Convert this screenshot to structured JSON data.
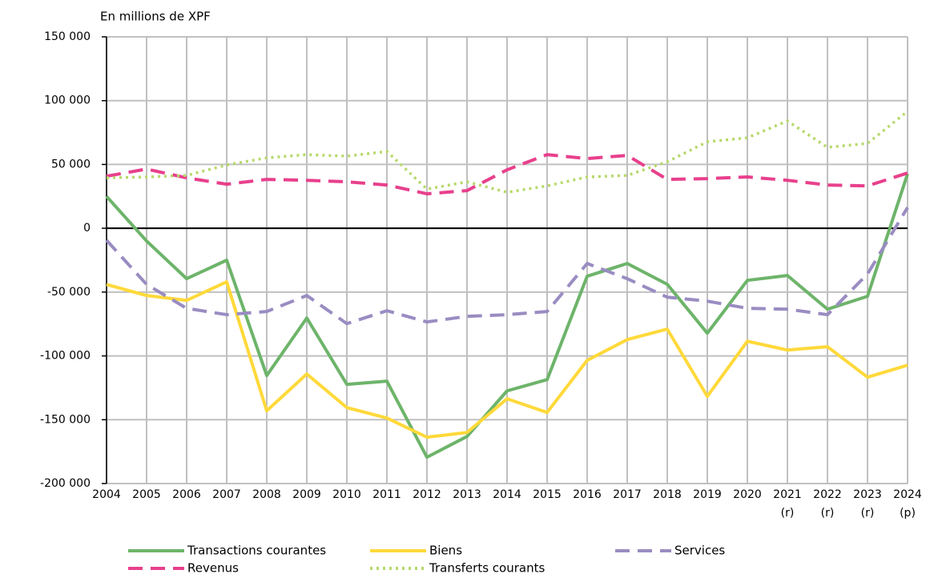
{
  "chart_data": {
    "type": "line",
    "y_axis_label": "En millions de XPF",
    "categories": [
      "2004",
      "2005",
      "2006",
      "2007",
      "2008",
      "2009",
      "2010",
      "2011",
      "2012",
      "2013",
      "2014",
      "2015",
      "2016",
      "2017",
      "2018",
      "2019",
      "2020",
      "2021 (r)",
      "2022 (r)",
      "2023 (r)",
      "2024 (p)"
    ],
    "ylim": [
      -200000,
      150000
    ],
    "yticks": [
      {
        "value": -200000,
        "label": "-200 000"
      },
      {
        "value": -150000,
        "label": "-150 000"
      },
      {
        "value": -100000,
        "label": "-100 000"
      },
      {
        "value": -50000,
        "label": "-50 000"
      },
      0,
      {
        "value": 50000,
        "label": "50 000"
      },
      {
        "value": 100000,
        "label": "100 000"
      },
      {
        "value": 150000,
        "label": "150 000"
      }
    ],
    "grid": true,
    "legend_position": "bottom",
    "series": [
      {
        "name": "Transactions courantes",
        "color": "#6db46a",
        "style": "solid",
        "values": [
          25000,
          -10000,
          -39500,
          -25000,
          -115400,
          -70300,
          -122300,
          -119800,
          -179400,
          -163100,
          -127400,
          -118600,
          -37600,
          -27600,
          -43900,
          -82200,
          -40800,
          -37000,
          -63400,
          -53300,
          42700
        ]
      },
      {
        "name": "Biens",
        "color": "#ffd93a",
        "style": "solid",
        "values": [
          -44000,
          -52700,
          -56500,
          -42000,
          -143000,
          -114200,
          -140500,
          -148700,
          -163700,
          -160000,
          -133600,
          -144300,
          -103500,
          -87200,
          -79000,
          -131700,
          -88500,
          -95400,
          -92800,
          -116700,
          -107300
        ]
      },
      {
        "name": "Services",
        "color": "#9a8cc2",
        "style": "dashed",
        "values": [
          -9400,
          -44000,
          -62700,
          -67700,
          -65200,
          -52700,
          -74700,
          -64600,
          -73400,
          -69000,
          -67700,
          -65200,
          -27600,
          -39500,
          -54000,
          -57100,
          -62700,
          -63400,
          -67700,
          -35800,
          16300
        ]
      },
      {
        "name": "Revenus",
        "color": "#e8408c",
        "style": "dashed",
        "values": [
          40800,
          46400,
          39500,
          34500,
          38300,
          37600,
          36400,
          33900,
          27000,
          29500,
          45800,
          57700,
          54600,
          57100,
          38300,
          38900,
          40200,
          37600,
          33900,
          33200,
          43300
        ]
      },
      {
        "name": "Transferts courants",
        "color": "#b6d96a",
        "style": "dotted",
        "values": [
          39500,
          40200,
          41400,
          49600,
          55200,
          57700,
          56500,
          60200,
          30700,
          36400,
          28200,
          33200,
          40200,
          41400,
          52100,
          67800,
          70900,
          84100,
          63400,
          66500,
          91600
        ]
      }
    ]
  }
}
